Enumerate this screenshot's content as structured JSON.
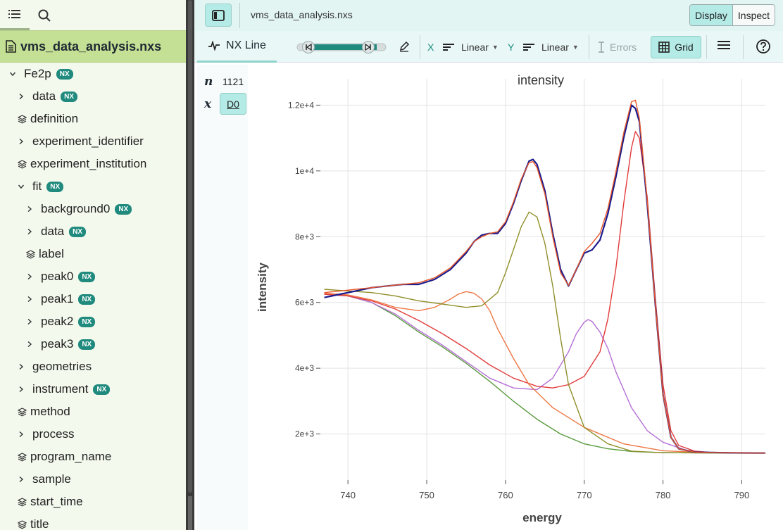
{
  "sidebar": {
    "file_name": "vms_data_analysis.nxs",
    "tree": [
      {
        "label": "Fe2p",
        "depth": 0,
        "kind": "group-open",
        "nx": true
      },
      {
        "label": "data",
        "depth": 1,
        "kind": "group",
        "nx": true
      },
      {
        "label": "definition",
        "depth": 1,
        "kind": "dataset",
        "nx": false
      },
      {
        "label": "experiment_identifier",
        "depth": 1,
        "kind": "group",
        "nx": false
      },
      {
        "label": "experiment_institution",
        "depth": 1,
        "kind": "dataset",
        "nx": false
      },
      {
        "label": "fit",
        "depth": 1,
        "kind": "group-open",
        "nx": true
      },
      {
        "label": "background0",
        "depth": 2,
        "kind": "group",
        "nx": true
      },
      {
        "label": "data",
        "depth": 2,
        "kind": "group",
        "nx": true
      },
      {
        "label": "label",
        "depth": 2,
        "kind": "dataset",
        "nx": false
      },
      {
        "label": "peak0",
        "depth": 2,
        "kind": "group",
        "nx": true
      },
      {
        "label": "peak1",
        "depth": 2,
        "kind": "group",
        "nx": true
      },
      {
        "label": "peak2",
        "depth": 2,
        "kind": "group",
        "nx": true
      },
      {
        "label": "peak3",
        "depth": 2,
        "kind": "group",
        "nx": true
      },
      {
        "label": "geometries",
        "depth": 1,
        "kind": "group",
        "nx": false
      },
      {
        "label": "instrument",
        "depth": 1,
        "kind": "group",
        "nx": true
      },
      {
        "label": "method",
        "depth": 1,
        "kind": "dataset",
        "nx": false
      },
      {
        "label": "process",
        "depth": 1,
        "kind": "group",
        "nx": false
      },
      {
        "label": "program_name",
        "depth": 1,
        "kind": "dataset",
        "nx": false
      },
      {
        "label": "sample",
        "depth": 1,
        "kind": "group",
        "nx": false
      },
      {
        "label": "start_time",
        "depth": 1,
        "kind": "dataset",
        "nx": false
      },
      {
        "label": "title",
        "depth": 1,
        "kind": "dataset",
        "nx": false
      }
    ],
    "nx_badge": "NX"
  },
  "header": {
    "path": "vms_data_analysis.nxs",
    "display_label": "Display",
    "inspect_label": "Inspect"
  },
  "toolbar": {
    "tab_label": "NX Line",
    "x_axis_label": "X",
    "x_scale": "Linear",
    "y_axis_label": "Y",
    "y_scale": "Linear",
    "errors_label": "Errors",
    "grid_label": "Grid"
  },
  "dims": {
    "n_symbol": "n",
    "n_value": "1121",
    "x_symbol": "x",
    "x_value": "D0"
  },
  "colors": {
    "data": "#1a1a8c",
    "fit": "#e8572a",
    "background": "#5a9a3e",
    "peak0": "#ee7744",
    "peak1": "#8f8f2a",
    "peak2": "#b66fd6",
    "peak3": "#e23b3b"
  },
  "chart_data": {
    "type": "line",
    "title": "intensity",
    "xlabel": "energy",
    "ylabel": "intensity",
    "xlim": [
      736.5,
      793
    ],
    "ylim": [
      600,
      12800
    ],
    "x_ticks": [
      740,
      750,
      760,
      770,
      780,
      790
    ],
    "y_ticks": [
      2000,
      4000,
      6000,
      8000,
      10000,
      12000
    ],
    "y_tick_labels": [
      "2e+3",
      "4e+3",
      "6e+3",
      "8e+3",
      "1e+4",
      "1.2e+4"
    ],
    "grid": true,
    "series": [
      {
        "key": "data",
        "x": [
          737,
          739,
          741,
          743,
          745,
          747,
          749,
          751,
          753,
          755,
          756,
          757,
          758,
          759,
          760,
          761,
          762,
          763,
          763.5,
          764,
          765,
          766,
          767,
          768,
          769,
          770,
          771,
          772,
          773,
          774,
          775,
          776,
          776.5,
          777,
          778,
          779,
          780,
          781,
          782,
          784,
          786,
          788,
          790,
          793
        ],
        "y": [
          6150,
          6250,
          6350,
          6450,
          6500,
          6550,
          6550,
          6700,
          7000,
          7500,
          7850,
          8050,
          8100,
          8100,
          8400,
          9000,
          9700,
          10300,
          10350,
          10200,
          9400,
          8100,
          7000,
          6500,
          7000,
          7500,
          7600,
          7900,
          8700,
          9800,
          11000,
          12000,
          11900,
          11500,
          9000,
          6000,
          3200,
          1900,
          1550,
          1450,
          1440,
          1430,
          1425,
          1420
        ]
      },
      {
        "key": "fit",
        "x": [
          737,
          739,
          741,
          743,
          745,
          747,
          749,
          751,
          753,
          755,
          756,
          757,
          758,
          759,
          760,
          761,
          762,
          763,
          763.5,
          764,
          765,
          766,
          767,
          768,
          769,
          770,
          771,
          772,
          773,
          774,
          775,
          776,
          776.5,
          777,
          778,
          779,
          780,
          781,
          782,
          784,
          786,
          788,
          790,
          793
        ],
        "y": [
          6300,
          6350,
          6400,
          6450,
          6500,
          6550,
          6600,
          6750,
          7050,
          7550,
          7850,
          8000,
          8100,
          8150,
          8450,
          9050,
          9750,
          10250,
          10280,
          10100,
          9300,
          8000,
          6900,
          6520,
          7000,
          7550,
          7800,
          8100,
          8850,
          9950,
          11150,
          12100,
          12150,
          11600,
          9100,
          6000,
          3200,
          1900,
          1550,
          1450,
          1440,
          1430,
          1425,
          1420
        ]
      },
      {
        "key": "background",
        "x": [
          737,
          740,
          743,
          746,
          749,
          752,
          755,
          758,
          761,
          764,
          767,
          770,
          773,
          776,
          779,
          782,
          786,
          790,
          793
        ],
        "y": [
          6250,
          6200,
          6000,
          5600,
          5100,
          4650,
          4150,
          3600,
          3000,
          2450,
          2000,
          1700,
          1550,
          1470,
          1440,
          1430,
          1425,
          1420,
          1420
        ]
      },
      {
        "key": "peak0",
        "x": [
          737,
          740,
          743,
          746,
          749,
          751,
          753,
          754,
          755,
          756,
          757,
          758,
          759,
          761,
          763,
          766,
          770,
          775,
          780,
          786,
          793
        ],
        "y": [
          6280,
          6230,
          6080,
          5850,
          5750,
          5850,
          6100,
          6250,
          6330,
          6280,
          6100,
          5750,
          5200,
          4300,
          3500,
          2800,
          2200,
          1700,
          1490,
          1430,
          1420
        ]
      },
      {
        "key": "peak1",
        "x": [
          737,
          740,
          743,
          746,
          749,
          752,
          755,
          757,
          759,
          760,
          761,
          762,
          763,
          764,
          765,
          766,
          767,
          768,
          770,
          773,
          776,
          780,
          786,
          793
        ],
        "y": [
          6400,
          6350,
          6300,
          6200,
          6050,
          5950,
          5850,
          5900,
          6300,
          6900,
          7600,
          8300,
          8750,
          8600,
          7800,
          6500,
          4900,
          3500,
          2200,
          1700,
          1480,
          1430,
          1425,
          1420
        ]
      },
      {
        "key": "peak2",
        "x": [
          737,
          740,
          743,
          746,
          749,
          752,
          755,
          758,
          761,
          764,
          766,
          768,
          769,
          770,
          770.5,
          771,
          772,
          773,
          774,
          776,
          778,
          780,
          783,
          786,
          793
        ],
        "y": [
          6250,
          6200,
          6000,
          5650,
          5150,
          4700,
          4200,
          3700,
          3400,
          3350,
          3700,
          4500,
          5050,
          5400,
          5480,
          5420,
          5100,
          4600,
          3900,
          2800,
          2100,
          1750,
          1500,
          1440,
          1420
        ]
      },
      {
        "key": "peak3",
        "x": [
          737,
          740,
          743,
          746,
          749,
          752,
          755,
          758,
          761,
          764,
          766,
          768,
          770,
          772,
          773,
          774,
          775,
          776,
          776.5,
          777,
          778,
          779,
          780,
          781,
          782,
          784,
          786,
          790,
          793
        ],
        "y": [
          6250,
          6200,
          6050,
          5800,
          5450,
          5050,
          4600,
          4100,
          3700,
          3450,
          3400,
          3500,
          3750,
          4500,
          5500,
          7000,
          9000,
          10700,
          11200,
          11000,
          9200,
          6200,
          3500,
          2100,
          1650,
          1480,
          1440,
          1425,
          1420
        ]
      }
    ]
  }
}
